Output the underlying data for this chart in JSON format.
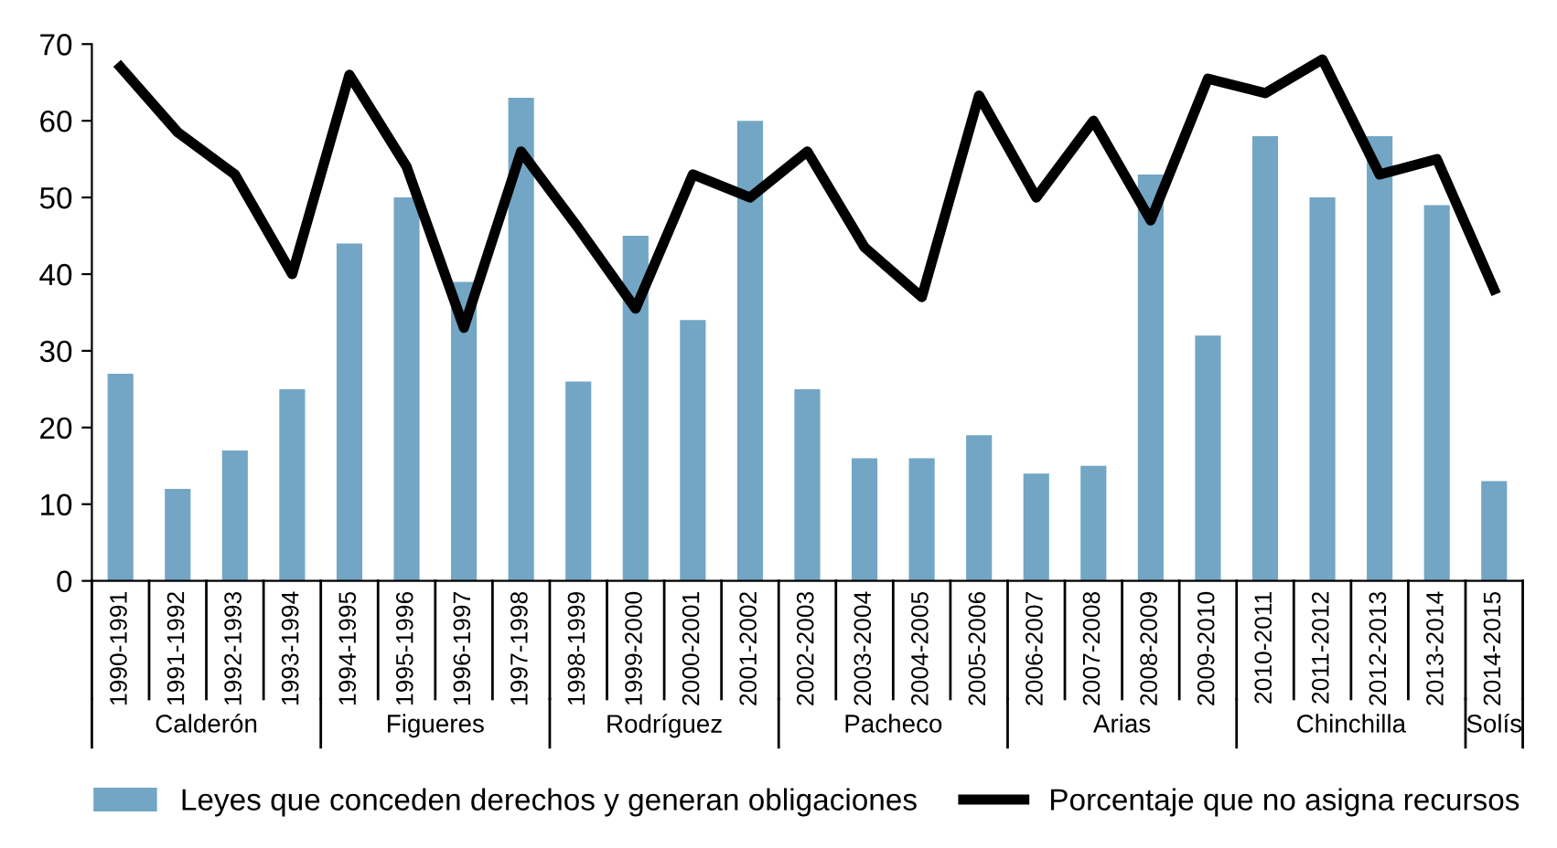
{
  "chart_data": {
    "type": "bar",
    "categories": [
      "1990-1991",
      "1991-1992",
      "1992-1993",
      "1993-1994",
      "1994-1995",
      "1995-1996",
      "1996-1997",
      "1997-1998",
      "1998-1999",
      "1999-2000",
      "2000-2001",
      "2001-2002",
      "2002-2003",
      "2003-2004",
      "2004-2005",
      "2005-2006",
      "2006-2007",
      "2007-2008",
      "2008-2009",
      "2009-2010",
      "2010-2011",
      "2011-2012",
      "2012-2013",
      "2013-2014",
      "2014-2015"
    ],
    "series": [
      {
        "name": "Leyes que conceden derechos y generan obligaciones",
        "color": "#72a6c4",
        "values": [
          27,
          12,
          17,
          25,
          44,
          50,
          39,
          63,
          26,
          45,
          34,
          60,
          25,
          16,
          16,
          19,
          14,
          15,
          53,
          32,
          58,
          50,
          58,
          49,
          13
        ]
      },
      {
        "name": "Porcentaje que no asigna recursos",
        "type": "line",
        "color": "#000000",
        "values": [
          67,
          58.5,
          53,
          40,
          66,
          54,
          33,
          56,
          46,
          35.5,
          53,
          50,
          56,
          43.5,
          37,
          63.3,
          50,
          60,
          47,
          65.5,
          63.6,
          68,
          53,
          55,
          38
        ]
      }
    ],
    "ylim": [
      0,
      70
    ],
    "yticks": [
      0,
      10,
      20,
      30,
      40,
      50,
      60,
      70
    ],
    "grid": false,
    "legend": "bottom",
    "marker": "none",
    "line_style": "solid",
    "annotations": [
      "Calderón",
      "Figueres",
      "Rodríguez",
      "Pacheco",
      "Arias",
      "Chinchilla",
      "Solís"
    ]
  }
}
